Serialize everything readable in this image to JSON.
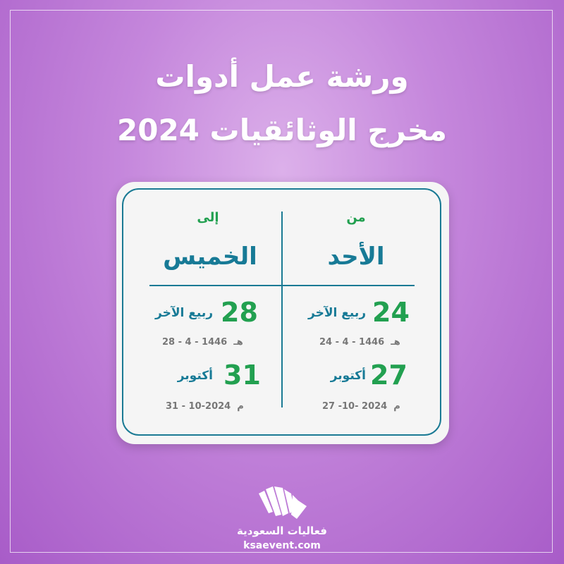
{
  "title": {
    "line1": "ورشة عمل أدوات",
    "line2": "مخرج الوثائقيات 2024"
  },
  "from": {
    "label": "من",
    "day": "الأحد",
    "hijri_day": "24",
    "hijri_month": "ربيع الآخر",
    "hijri_date": "1446 - 4 - 24",
    "hijri_suffix": "هـ",
    "greg_day": "27",
    "greg_month": "أكتوبر",
    "greg_date": "2024 -10- 27",
    "greg_suffix": "م"
  },
  "to": {
    "label": "إلى",
    "day": "الخميس",
    "hijri_day": "28",
    "hijri_month": "ربيع الآخر",
    "hijri_date": "1446 - 4 - 28",
    "hijri_suffix": "هـ",
    "greg_day": "31",
    "greg_month": "أكتوبر",
    "greg_date": "2024-10 - 31",
    "greg_suffix": "م"
  },
  "brand": {
    "name": "فعاليات السعودية",
    "url": "ksaevent.com"
  },
  "colors": {
    "green": "#22a050",
    "teal": "#177a96",
    "background": "#c587dc"
  }
}
